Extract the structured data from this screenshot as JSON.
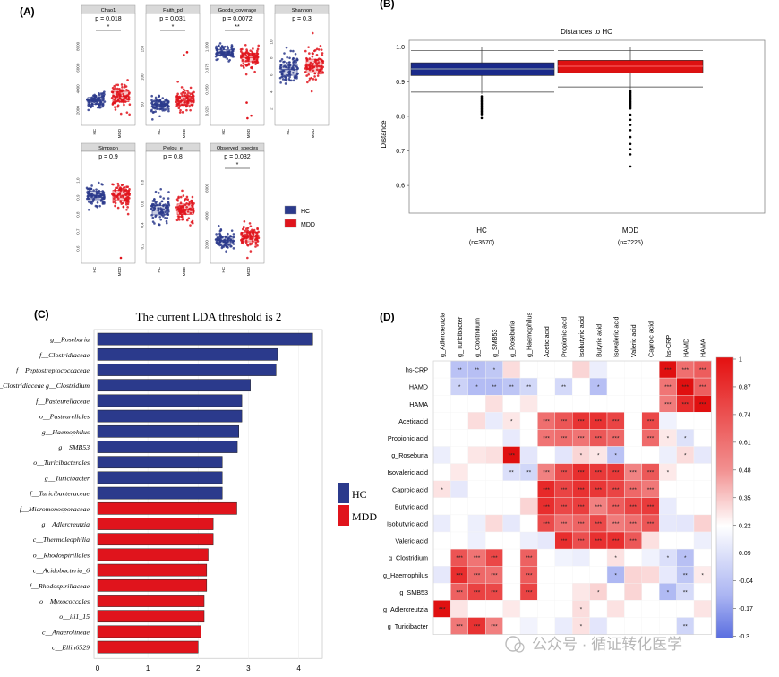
{
  "panels": {
    "A": "(A)",
    "B": "(B)",
    "C": "(C)",
    "D": "(D)"
  },
  "colors": {
    "hc": "#2b3a8c",
    "mdd": "#e0141c",
    "hc_box": "#1a2a8a",
    "mdd_box": "#dd1111"
  },
  "alpha": {
    "groups": [
      "HC",
      "MDD"
    ],
    "legend": [
      "HC",
      "MDD"
    ],
    "facets": [
      {
        "name": "Chao1",
        "p": "p = 0.018",
        "sig": "*",
        "yticks": [
          "2000",
          "4000",
          "6000",
          "8000"
        ]
      },
      {
        "name": "Faith_pd",
        "p": "p = 0.031",
        "sig": "*",
        "yticks": [
          "50",
          "100",
          "150"
        ]
      },
      {
        "name": "Goods_coverage",
        "p": "p = 0.0072",
        "sig": "**",
        "yticks": [
          "0.925",
          "0.950",
          "0.975",
          "1.000"
        ]
      },
      {
        "name": "Shannon",
        "p": "p = 0.3",
        "sig": "",
        "yticks": [
          "2",
          "4",
          "6",
          "8",
          "10"
        ]
      },
      {
        "name": "Simpson",
        "p": "p = 0.9",
        "sig": "",
        "yticks": [
          "0.6",
          "0.7",
          "0.8",
          "0.9",
          "1.0"
        ]
      },
      {
        "name": "Pielou_e",
        "p": "p = 0.8",
        "sig": "",
        "yticks": [
          "0.2",
          "0.4",
          "0.6",
          "0.8"
        ]
      },
      {
        "name": "Observed_species",
        "p": "p = 0.032",
        "sig": "*",
        "yticks": [
          "2000",
          "4000",
          "6000"
        ]
      }
    ]
  },
  "distance": {
    "title": "Distances to HC",
    "ylabel": "Distance",
    "yticks": [
      "0.6",
      "0.7",
      "0.8",
      "0.9",
      "1.0"
    ],
    "groups": [
      {
        "name": "HC",
        "n": "(n=3570)"
      },
      {
        "name": "MDD",
        "n": "(n=7225)"
      }
    ]
  },
  "chart_data": {
    "type": "bar",
    "title": "The current LDA threshold is 2",
    "orientation": "horizontal",
    "xticks": [
      "0",
      "1",
      "2",
      "3",
      "4"
    ],
    "xlim": [
      0,
      4.4
    ],
    "legend": [
      "HC",
      "MDD"
    ],
    "categories": [
      "g__Roseburia",
      "f__Clostridiaceae",
      "f__Peptostreptococcaceae",
      "f__Clostridiaceae g__Clostridium",
      "f__Pasteurellaceae",
      "o__Pasteurellales",
      "g__Haemophilus",
      "g__SMB53",
      "o__Turicibacterales",
      "g__Turicibacter",
      "f__Turicibacteraceae",
      "f__Micromonosporaceae",
      "g__Adlercreutzia",
      "c__Thermoleophilia",
      "o__Rhodospirillales",
      "c__Acidobacteria_6",
      "f__Rhodospirillaceae",
      "o__Myxococcales",
      "o__iii1_15",
      "c__Anaerolineae",
      "c__Ellin6529"
    ],
    "values": [
      4.28,
      3.58,
      3.55,
      3.04,
      2.87,
      2.87,
      2.81,
      2.78,
      2.48,
      2.48,
      2.48,
      2.77,
      2.3,
      2.3,
      2.2,
      2.17,
      2.17,
      2.12,
      2.12,
      2.06,
      2.0
    ],
    "groups": [
      "HC",
      "HC",
      "HC",
      "HC",
      "HC",
      "HC",
      "HC",
      "HC",
      "HC",
      "HC",
      "HC",
      "MDD",
      "MDD",
      "MDD",
      "MDD",
      "MDD",
      "MDD",
      "MDD",
      "MDD",
      "MDD",
      "MDD"
    ]
  },
  "heatmap": {
    "cols": [
      "g_Adlercreutzia",
      "g_Turicibacter",
      "g_Clostridium",
      "g_SMB53",
      "g_Roseburia",
      "g_Haemophilus",
      "Acetic acid",
      "Propionic acid",
      "Isobutyric acid",
      "Butyric acid",
      "Isovaleric acid",
      "Valeric acid",
      "Caproic acid",
      "hs-CRP",
      "HAMD",
      "HAMA"
    ],
    "rows": [
      "hs-CRP",
      "HAMD",
      "HAMA",
      "Aceticacid",
      "Propionic acid",
      "g_Roseburia",
      "Isovaleric acid",
      "Caproic acid",
      "Butyric acid",
      "Isobutyric acid",
      "Valeric acid",
      "g_Clostridium",
      "g_Haemophilus",
      "g_SMB53",
      "g_Adlercreutzia",
      "g_Turicibacter"
    ],
    "colorbar": [
      "1",
      "0.87",
      "0.74",
      "0.61",
      "0.48",
      "0.35",
      "0.22",
      "0.09",
      "-0.04",
      "-0.17",
      "-0.3"
    ]
  },
  "watermark": "公众号 · 循证转化医学"
}
